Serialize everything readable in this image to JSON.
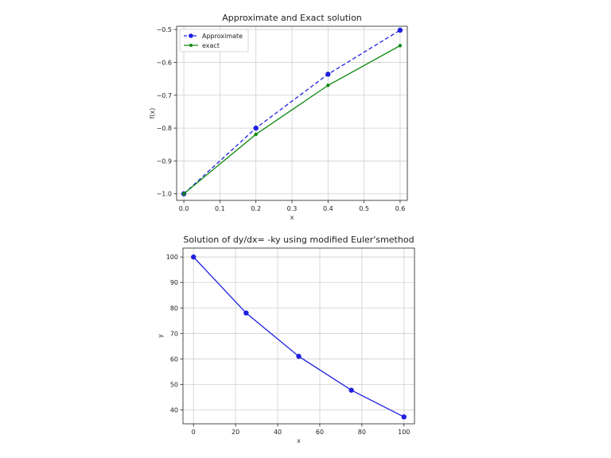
{
  "chart_data": [
    {
      "type": "line",
      "title": "Approximate and  Exact solution",
      "xlabel": "x",
      "ylabel": "f(x)",
      "xlim": [
        -0.02,
        0.62
      ],
      "ylim": [
        -1.02,
        -0.49
      ],
      "xticks": [
        0.0,
        0.1,
        0.2,
        0.3,
        0.4,
        0.5,
        0.6
      ],
      "xtick_labels": [
        "0.0",
        "0.1",
        "0.2",
        "0.3",
        "0.4",
        "0.5",
        "0.6"
      ],
      "yticks": [
        -1.0,
        -0.9,
        -0.8,
        -0.7,
        -0.6,
        -0.5
      ],
      "ytick_labels": [
        "−1.0",
        "−0.9",
        "−0.8",
        "−0.7",
        "−0.6",
        "−0.5"
      ],
      "grid": true,
      "legend": "top-left",
      "x": [
        0.0,
        0.2,
        0.4,
        0.6
      ],
      "series": [
        {
          "name": "Approximate",
          "values": [
            -1.0,
            -0.8,
            -0.636,
            -0.502
          ],
          "color": "#1f1fe0",
          "style": "dashed",
          "marker": "circle"
        },
        {
          "name": "exact",
          "values": [
            -1.0,
            -0.819,
            -0.67,
            -0.549
          ],
          "color": "#108a10",
          "style": "solid",
          "marker": "dot"
        }
      ]
    },
    {
      "type": "line",
      "title": "Solution of dy/dx= -ky using modified Euler'smethod",
      "xlabel": "x",
      "ylabel": "y",
      "xlim": [
        -5,
        105
      ],
      "ylim": [
        34.5,
        103.5
      ],
      "xticks": [
        0,
        20,
        40,
        60,
        80,
        100
      ],
      "xtick_labels": [
        "0",
        "20",
        "40",
        "60",
        "80",
        "100"
      ],
      "yticks": [
        40,
        50,
        60,
        70,
        80,
        90,
        100
      ],
      "ytick_labels": [
        "40",
        "50",
        "60",
        "70",
        "80",
        "90",
        "100"
      ],
      "grid": true,
      "x": [
        0,
        25,
        50,
        75,
        100
      ],
      "series": [
        {
          "values": [
            100,
            78.0,
            61.0,
            47.7,
            37.2
          ],
          "color": "#1f1fe0",
          "style": "solid",
          "marker": "circle"
        }
      ]
    }
  ]
}
